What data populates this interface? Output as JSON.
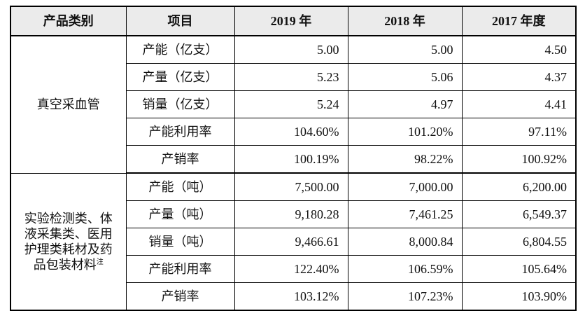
{
  "header": {
    "category": "产品类别",
    "item": "项目",
    "y2019": "2019 年",
    "y2018": "2018 年",
    "y2017": "2017 年度"
  },
  "groups": [
    {
      "category_lines": [
        "真空采血管"
      ],
      "category_note": "",
      "rows": [
        {
          "item": "产能（亿支）",
          "v2019": "5.00",
          "v2018": "5.00",
          "v2017": "4.50"
        },
        {
          "item": "产量（亿支）",
          "v2019": "5.23",
          "v2018": "5.06",
          "v2017": "4.37"
        },
        {
          "item": "销量（亿支）",
          "v2019": "5.24",
          "v2018": "4.97",
          "v2017": "4.41"
        },
        {
          "item": "产能利用率",
          "v2019": "104.60%",
          "v2018": "101.20%",
          "v2017": "97.11%"
        },
        {
          "item": "产销率",
          "v2019": "100.19%",
          "v2018": "98.22%",
          "v2017": "100.92%"
        }
      ]
    },
    {
      "category_lines": [
        "实验检测类、体",
        "液采集类、医用",
        "护理类耗材及药",
        "品包装材料"
      ],
      "category_note": "注",
      "rows": [
        {
          "item": "产能（吨）",
          "v2019": "7,500.00",
          "v2018": "7,000.00",
          "v2017": "6,200.00"
        },
        {
          "item": "产量（吨）",
          "v2019": "9,180.28",
          "v2018": "7,461.25",
          "v2017": "6,549.37"
        },
        {
          "item": "销量（吨）",
          "v2019": "9,466.61",
          "v2018": "8,000.84",
          "v2017": "6,804.55"
        },
        {
          "item": "产能利用率",
          "v2019": "122.40%",
          "v2018": "106.59%",
          "v2017": "105.64%"
        },
        {
          "item": "产销率",
          "v2019": "103.12%",
          "v2018": "107.23%",
          "v2017": "103.90%"
        }
      ]
    }
  ]
}
